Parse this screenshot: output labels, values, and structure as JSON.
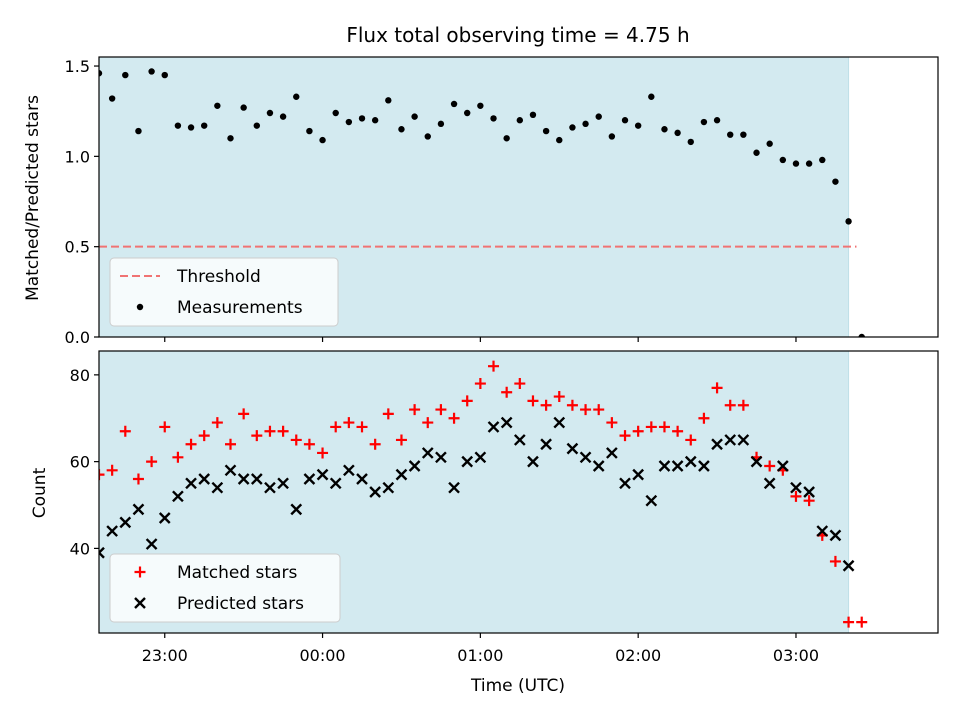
{
  "chart_data": [
    {
      "type": "scatter",
      "title": "Flux total observing time = 4.75 h",
      "xlabel": "",
      "ylabel": "Matched/Predicted stars",
      "ylim": [
        0,
        1.55
      ],
      "yticks": [
        0.0,
        0.5,
        1.0,
        1.5
      ],
      "ytick_labels": [
        "0.0",
        "0.5",
        "1.0",
        "1.5"
      ],
      "xlim": [
        "22:35",
        "03:54"
      ],
      "xticks": [
        "23:00",
        "00:00",
        "01:00",
        "02:00",
        "03:00"
      ],
      "shaded_span": [
        "22:35",
        "03:20"
      ],
      "shade_color": "#d3eaf0",
      "legend": {
        "position": "lower-left",
        "entries": [
          "Threshold",
          "Measurements"
        ]
      },
      "threshold": {
        "name": "Threshold",
        "value": 0.5,
        "x_range": [
          "22:35",
          "03:23"
        ],
        "color": "#f07373",
        "style": "dashed"
      },
      "series": [
        {
          "name": "Measurements",
          "color": "#000000",
          "marker": "dot",
          "x": [
            "22:35",
            "22:40",
            "22:45",
            "22:50",
            "22:55",
            "23:00",
            "23:05",
            "23:10",
            "23:15",
            "23:20",
            "23:25",
            "23:30",
            "23:35",
            "23:40",
            "23:45",
            "23:50",
            "23:55",
            "00:00",
            "00:05",
            "00:10",
            "00:15",
            "00:20",
            "00:25",
            "00:30",
            "00:35",
            "00:40",
            "00:45",
            "00:50",
            "00:55",
            "01:00",
            "01:05",
            "01:10",
            "01:15",
            "01:20",
            "01:25",
            "01:30",
            "01:35",
            "01:40",
            "01:45",
            "01:50",
            "01:55",
            "02:00",
            "02:05",
            "02:10",
            "02:15",
            "02:20",
            "02:25",
            "02:30",
            "02:35",
            "02:40",
            "02:45",
            "02:50",
            "02:55",
            "03:00",
            "03:05",
            "03:10",
            "03:15",
            "03:20",
            "03:25"
          ],
          "y": [
            1.46,
            1.32,
            1.45,
            1.14,
            1.47,
            1.45,
            1.17,
            1.16,
            1.17,
            1.28,
            1.1,
            1.27,
            1.17,
            1.24,
            1.22,
            1.33,
            1.14,
            1.09,
            1.24,
            1.19,
            1.21,
            1.2,
            1.31,
            1.15,
            1.22,
            1.11,
            1.18,
            1.29,
            1.24,
            1.28,
            1.21,
            1.1,
            1.2,
            1.23,
            1.14,
            1.09,
            1.16,
            1.18,
            1.22,
            1.11,
            1.2,
            1.17,
            1.33,
            1.15,
            1.13,
            1.08,
            1.19,
            1.2,
            1.12,
            1.12,
            1.02,
            1.07,
            0.98,
            0.96,
            0.96,
            0.98,
            0.86,
            0.64,
            0.0
          ]
        }
      ]
    },
    {
      "type": "scatter",
      "title": "",
      "xlabel": "Time (UTC)",
      "ylabel": "Count",
      "ylim": [
        20.5,
        85.5
      ],
      "yticks": [
        40,
        60,
        80
      ],
      "ytick_labels": [
        "40",
        "60",
        "80"
      ],
      "xlim": [
        "22:35",
        "03:54"
      ],
      "xticks": [
        "23:00",
        "00:00",
        "01:00",
        "02:00",
        "03:00"
      ],
      "xtick_labels": [
        "23:00",
        "00:00",
        "01:00",
        "02:00",
        "03:00"
      ],
      "shaded_span": [
        "22:35",
        "03:20"
      ],
      "shade_color": "#d3eaf0",
      "legend": {
        "position": "lower-left",
        "entries": [
          "Matched stars",
          "Predicted stars"
        ]
      },
      "series": [
        {
          "name": "Matched stars",
          "color": "#ff0000",
          "marker": "plus",
          "x": [
            "22:35",
            "22:40",
            "22:45",
            "22:50",
            "22:55",
            "23:00",
            "23:05",
            "23:10",
            "23:15",
            "23:20",
            "23:25",
            "23:30",
            "23:35",
            "23:40",
            "23:45",
            "23:50",
            "23:55",
            "00:00",
            "00:05",
            "00:10",
            "00:15",
            "00:20",
            "00:25",
            "00:30",
            "00:35",
            "00:40",
            "00:45",
            "00:50",
            "00:55",
            "01:00",
            "01:05",
            "01:10",
            "01:15",
            "01:20",
            "01:25",
            "01:30",
            "01:35",
            "01:40",
            "01:45",
            "01:50",
            "01:55",
            "02:00",
            "02:05",
            "02:10",
            "02:15",
            "02:20",
            "02:25",
            "02:30",
            "02:35",
            "02:40",
            "02:45",
            "02:50",
            "02:55",
            "03:00",
            "03:05",
            "03:10",
            "03:15",
            "03:20",
            "03:25"
          ],
          "y": [
            57,
            58,
            67,
            56,
            60,
            68,
            61,
            64,
            66,
            69,
            64,
            71,
            66,
            67,
            67,
            65,
            64,
            62,
            68,
            69,
            68,
            64,
            71,
            65,
            72,
            69,
            72,
            70,
            74,
            78,
            82,
            76,
            78,
            74,
            73,
            75,
            73,
            72,
            72,
            69,
            66,
            67,
            68,
            68,
            67,
            65,
            70,
            77,
            73,
            73,
            61,
            59,
            58,
            52,
            51,
            43,
            37,
            23,
            23
          ]
        },
        {
          "name": "Predicted stars",
          "color": "#000000",
          "marker": "x",
          "x": [
            "22:35",
            "22:40",
            "22:45",
            "22:50",
            "22:55",
            "23:00",
            "23:05",
            "23:10",
            "23:15",
            "23:20",
            "23:25",
            "23:30",
            "23:35",
            "23:40",
            "23:45",
            "23:50",
            "23:55",
            "00:00",
            "00:05",
            "00:10",
            "00:15",
            "00:20",
            "00:25",
            "00:30",
            "00:35",
            "00:40",
            "00:45",
            "00:50",
            "00:55",
            "01:00",
            "01:05",
            "01:10",
            "01:15",
            "01:20",
            "01:25",
            "01:30",
            "01:35",
            "01:40",
            "01:45",
            "01:50",
            "01:55",
            "02:00",
            "02:05",
            "02:10",
            "02:15",
            "02:20",
            "02:25",
            "02:30",
            "02:35",
            "02:40",
            "02:45",
            "02:50",
            "02:55",
            "03:00",
            "03:05",
            "03:10",
            "03:15",
            "03:20"
          ],
          "y": [
            39,
            44,
            46,
            49,
            41,
            47,
            52,
            55,
            56,
            54,
            58,
            56,
            56,
            54,
            55,
            49,
            56,
            57,
            55,
            58,
            56,
            53,
            54,
            57,
            59,
            62,
            61,
            54,
            60,
            61,
            68,
            69,
            65,
            60,
            64,
            69,
            63,
            61,
            59,
            62,
            55,
            57,
            51,
            59,
            59,
            60,
            59,
            64,
            65,
            65,
            60,
            55,
            59,
            54,
            53,
            44,
            43,
            36
          ]
        }
      ]
    }
  ]
}
